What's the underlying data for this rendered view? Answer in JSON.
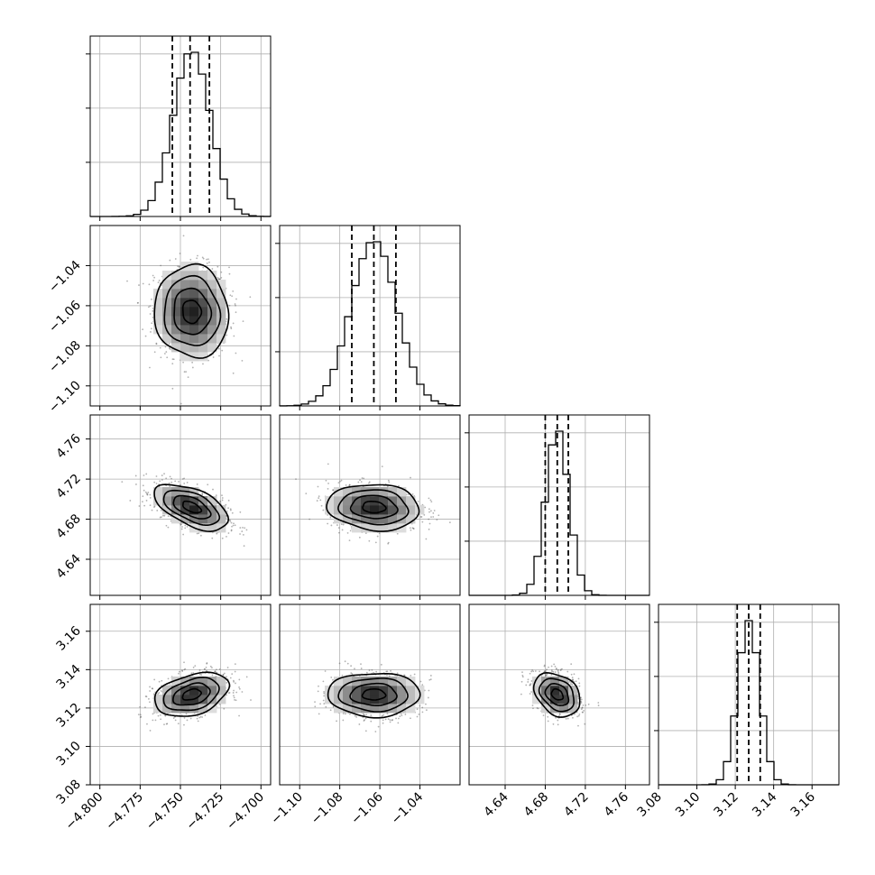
{
  "chart_data": {
    "type": "corner",
    "parameters": [
      {
        "mean": -4.743,
        "sigma": 0.0115,
        "quantiles": [
          -4.755,
          -4.744,
          -4.732
        ],
        "range": [
          -4.806,
          -4.694
        ],
        "ticks": [
          -4.8,
          -4.775,
          -4.75,
          -4.725,
          -4.7
        ],
        "tick_labels": [
          "−4.800",
          "−4.775",
          "−4.750",
          "−4.725",
          "−4.700"
        ]
      },
      {
        "mean": -1.063,
        "sigma": 0.0115,
        "quantiles": [
          -1.074,
          -1.063,
          -1.052
        ],
        "range": [
          -1.11,
          -1.02
        ],
        "ticks": [
          -1.1,
          -1.08,
          -1.06,
          -1.04
        ],
        "tick_labels": [
          "−1.10",
          "−1.08",
          "−1.06",
          "−1.04"
        ]
      },
      {
        "mean": 4.692,
        "sigma": 0.0115,
        "quantiles": [
          4.68,
          4.692,
          4.703
        ],
        "range": [
          4.604,
          4.784
        ],
        "ticks": [
          4.64,
          4.68,
          4.72,
          4.76
        ],
        "tick_labels": [
          "4.64",
          "4.68",
          "4.72",
          "4.76"
        ]
      },
      {
        "mean": 3.127,
        "sigma": 0.0057,
        "quantiles": [
          3.121,
          3.127,
          3.133
        ],
        "range": [
          3.08,
          3.174
        ],
        "ticks": [
          3.08,
          3.1,
          3.12,
          3.14,
          3.16
        ],
        "tick_labels": [
          "3.08",
          "3.10",
          "3.12",
          "3.14",
          "3.16"
        ]
      }
    ],
    "correlations": {
      "1-0": -0.05,
      "2-0": -0.55,
      "2-1": -0.1,
      "3-0": 0.35,
      "3-1": 0.0,
      "3-2": -0.3
    },
    "histogram_bins": 25,
    "contour_levels_sigma": [
      0.5,
      1.0,
      1.5,
      2.0
    ],
    "grid": true
  }
}
